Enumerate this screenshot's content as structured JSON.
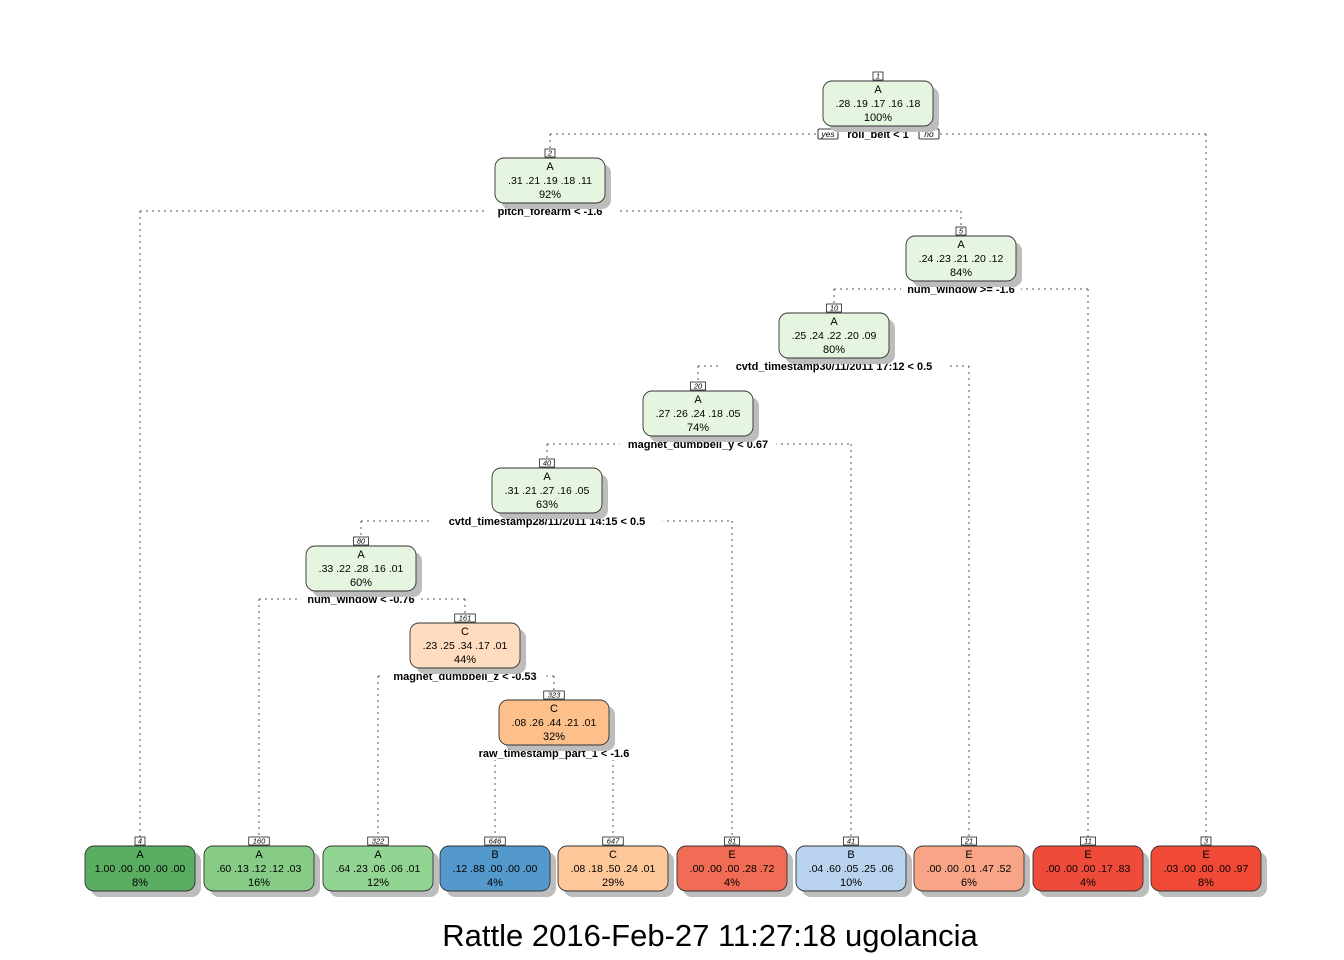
{
  "colors": {
    "light_green": "#E5F5E0",
    "green_1": "#5AAE61",
    "green_2": "#86CC86",
    "green_3": "#92D592",
    "light_orange": "#FDDCBF",
    "orange": "#FDC08A",
    "light_orange_2": "#FDC79A",
    "blue": "#5499CB",
    "light_blue": "#B9D3EE",
    "red_1": "#F06C54",
    "red_2": "#F8A487",
    "red_3": "#EF4B3A",
    "red_4": "#F04A36"
  },
  "nodes": [
    {
      "id": "1",
      "label": "A",
      "probs": ".28  .19  .17  .16  .18",
      "pct": "100%",
      "color": "#E5F5E0"
    },
    {
      "id": "2",
      "label": "A",
      "probs": ".31  .21  .19  .18  .11",
      "pct": "92%",
      "color": "#E5F5E0"
    },
    {
      "id": "5",
      "label": "A",
      "probs": ".24  .23  .21  .20  .12",
      "pct": "84%",
      "color": "#E5F5E0"
    },
    {
      "id": "10",
      "label": "A",
      "probs": ".25  .24  .22  .20  .09",
      "pct": "80%",
      "color": "#E5F5E0"
    },
    {
      "id": "20",
      "label": "A",
      "probs": ".27  .26  .24  .18  .05",
      "pct": "74%",
      "color": "#E5F5E0"
    },
    {
      "id": "40",
      "label": "A",
      "probs": ".31  .21  .27  .16  .05",
      "pct": "63%",
      "color": "#E5F5E0"
    },
    {
      "id": "80",
      "label": "A",
      "probs": ".33  .22  .28  .16  .01",
      "pct": "60%",
      "color": "#E5F5E0"
    },
    {
      "id": "161",
      "label": "C",
      "probs": ".23  .25  .34  .17  .01",
      "pct": "44%",
      "color": "#FDDCBF"
    },
    {
      "id": "323",
      "label": "C",
      "probs": ".08  .26  .44  .21  .01",
      "pct": "32%",
      "color": "#FDC08A"
    },
    {
      "id": "4",
      "label": "A",
      "probs": "1.00  .00  .00  .00  .00",
      "pct": "8%",
      "color": "#5AAE61"
    },
    {
      "id": "160",
      "label": "A",
      "probs": ".60  .13  .12  .12  .03",
      "pct": "16%",
      "color": "#86CC86"
    },
    {
      "id": "322",
      "label": "A",
      "probs": ".64  .23  .06  .06  .01",
      "pct": "12%",
      "color": "#92D592"
    },
    {
      "id": "646",
      "label": "B",
      "probs": ".12  .88  .00  .00  .00",
      "pct": "4%",
      "color": "#5499CB"
    },
    {
      "id": "647",
      "label": "C",
      "probs": ".08  .18  .50  .24  .01",
      "pct": "29%",
      "color": "#FDC79A"
    },
    {
      "id": "81",
      "label": "E",
      "probs": ".00  .00  .00  .28  .72",
      "pct": "4%",
      "color": "#F06C54"
    },
    {
      "id": "41",
      "label": "B",
      "probs": ".04  .60  .05  .25  .06",
      "pct": "10%",
      "color": "#B9D3EE"
    },
    {
      "id": "21",
      "label": "E",
      "probs": ".00  .00  .01  .47  .52",
      "pct": "6%",
      "color": "#F8A487"
    },
    {
      "id": "11",
      "label": "E",
      "probs": ".00  .00  .00  .17  .83",
      "pct": "4%",
      "color": "#EF4B3A"
    },
    {
      "id": "3",
      "label": "E",
      "probs": ".03  .00  .00  .00  .97",
      "pct": "8%",
      "color": "#F04A36"
    }
  ],
  "splits": [
    {
      "parent": "1",
      "rule": "roll_belt < 1",
      "left": "2",
      "right": "3"
    },
    {
      "parent": "2",
      "rule": "pitch_forearm < -1.6",
      "left": "4",
      "right": "5"
    },
    {
      "parent": "5",
      "rule": "num_window >= -1.6",
      "left": "10",
      "right": "11"
    },
    {
      "parent": "10",
      "rule": "cvtd_timestamp30/11/2011 17:12 < 0.5",
      "left": "20",
      "right": "21"
    },
    {
      "parent": "20",
      "rule": "magnet_dumbbell_y < 0.67",
      "left": "40",
      "right": "41"
    },
    {
      "parent": "40",
      "rule": "cvtd_timestamp28/11/2011 14:15 < 0.5",
      "left": "80",
      "right": "81"
    },
    {
      "parent": "80",
      "rule": "num_window < -0.76",
      "left": "160",
      "right": "161"
    },
    {
      "parent": "161",
      "rule": "magnet_dumbbell_z < -0.53",
      "left": "322",
      "right": "323"
    },
    {
      "parent": "323",
      "rule": "raw_timestamp_part_1 < -1.6",
      "left": "646",
      "right": "647"
    }
  ],
  "root_branch_labels": {
    "yes": "yes",
    "no": "no"
  },
  "caption": "Rattle 2016-Feb-27 11:27:18 ugolancia"
}
